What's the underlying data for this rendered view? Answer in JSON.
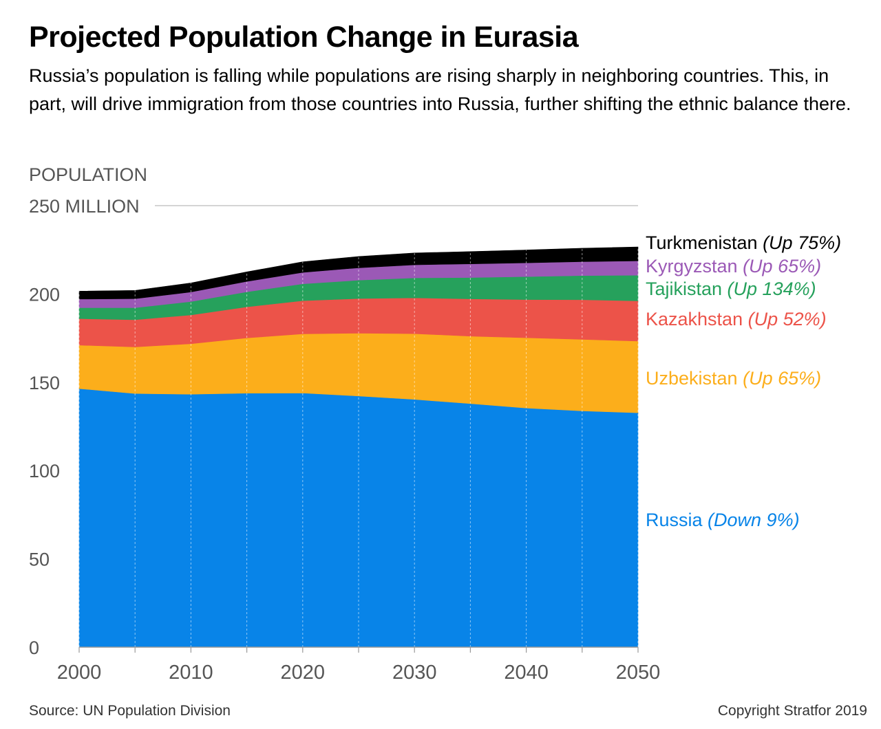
{
  "title": "Projected Population Change in Eurasia",
  "subtitle": "Russia’s population is falling while populations are rising sharply in neighboring countries. This, in part, will drive immigration from those countries into Russia, further shifting the ethnic balance there.",
  "footer": {
    "source": "Source: UN Population Division",
    "copyright": "Copyright Stratfor 2019"
  },
  "chart_data": {
    "type": "area",
    "stacked": true,
    "ylabel": "POPULATION",
    "top_tick_label": "250 MILLION",
    "ylim": [
      0,
      250
    ],
    "yticks": [
      0,
      50,
      100,
      150,
      200,
      250
    ],
    "ytick_labels": [
      "0",
      "50",
      "100",
      "150",
      "200",
      "250 MILLION"
    ],
    "xticks": [
      2000,
      2010,
      2020,
      2030,
      2040,
      2050
    ],
    "xtick_labels": [
      "2000",
      "2010",
      "2020",
      "2030",
      "2040",
      "2050"
    ],
    "grid": "vertical dashed lines every 5 years, horizontal line at 250",
    "x": [
      2000,
      2005,
      2010,
      2015,
      2020,
      2025,
      2030,
      2035,
      2040,
      2045,
      2050
    ],
    "series": [
      {
        "name": "Russia",
        "change": "(Down 9%)",
        "color": "#0884e8",
        "values": [
          146.4,
          143.6,
          143.2,
          143.8,
          143.9,
          142.2,
          140.3,
          137.9,
          135.4,
          133.8,
          132.7
        ]
      },
      {
        "name": "Uzbekistan",
        "change": "(Up 65%)",
        "color": "#fcae1b",
        "values": [
          24.6,
          26.4,
          28.6,
          31.3,
          33.5,
          35.6,
          37.2,
          38.2,
          39.8,
          40.5,
          40.6
        ]
      },
      {
        "name": "Kazakhstan",
        "change": "(Up 52%)",
        "color": "#ec5349",
        "values": [
          15.0,
          15.4,
          16.3,
          17.6,
          18.8,
          19.6,
          20.3,
          21.1,
          21.6,
          22.4,
          22.8
        ]
      },
      {
        "name": "Tajikistan",
        "change": "(Up 134%)",
        "color": "#26a15c",
        "values": [
          6.2,
          6.8,
          7.6,
          8.5,
          9.5,
          10.4,
          11.3,
          12.1,
          13.0,
          13.7,
          14.5
        ]
      },
      {
        "name": "Kyrgyzstan",
        "change": "(Up 65%)",
        "color": "#9b59b6",
        "values": [
          4.9,
          5.1,
          5.4,
          5.9,
          6.5,
          7.0,
          7.4,
          7.7,
          7.8,
          7.9,
          8.1
        ]
      },
      {
        "name": "Turkmenistan",
        "change": "(Up 75%)",
        "color": "#000000",
        "values": [
          4.5,
          4.7,
          5.1,
          5.4,
          6.0,
          6.4,
          6.7,
          7.0,
          7.3,
          7.6,
          7.9
        ]
      }
    ]
  }
}
